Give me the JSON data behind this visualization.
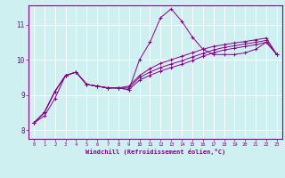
{
  "title": "",
  "xlabel": "Windchill (Refroidissement éolien,°C)",
  "ylabel": "",
  "background_color": "#cff0f0",
  "line_color": "#880088",
  "x_min": -0.5,
  "x_max": 23.5,
  "y_min": 7.75,
  "y_max": 11.55,
  "yticks": [
    8,
    9,
    10,
    11
  ],
  "xticks": [
    0,
    1,
    2,
    3,
    4,
    5,
    6,
    7,
    8,
    9,
    10,
    11,
    12,
    13,
    14,
    15,
    16,
    17,
    18,
    19,
    20,
    21,
    22,
    23
  ],
  "series": [
    [
      8.2,
      8.4,
      8.9,
      9.55,
      9.65,
      9.3,
      9.25,
      9.2,
      9.2,
      9.15,
      10.0,
      10.5,
      11.2,
      11.45,
      11.1,
      10.65,
      10.3,
      10.15,
      10.15,
      10.15,
      10.2,
      10.3,
      10.5,
      10.15
    ],
    [
      8.2,
      8.5,
      9.1,
      9.55,
      9.65,
      9.3,
      9.25,
      9.2,
      9.2,
      9.25,
      9.55,
      9.75,
      9.9,
      10.0,
      10.1,
      10.2,
      10.3,
      10.38,
      10.43,
      10.48,
      10.52,
      10.57,
      10.62,
      10.15
    ],
    [
      8.2,
      8.5,
      9.1,
      9.55,
      9.65,
      9.3,
      9.25,
      9.2,
      9.2,
      9.2,
      9.5,
      9.65,
      9.78,
      9.88,
      9.97,
      10.08,
      10.18,
      10.28,
      10.35,
      10.4,
      10.45,
      10.5,
      10.55,
      10.15
    ],
    [
      8.2,
      8.5,
      9.1,
      9.55,
      9.65,
      9.3,
      9.25,
      9.2,
      9.2,
      9.15,
      9.42,
      9.56,
      9.68,
      9.78,
      9.87,
      9.98,
      10.1,
      10.2,
      10.28,
      10.33,
      10.38,
      10.43,
      10.5,
      10.15
    ]
  ]
}
